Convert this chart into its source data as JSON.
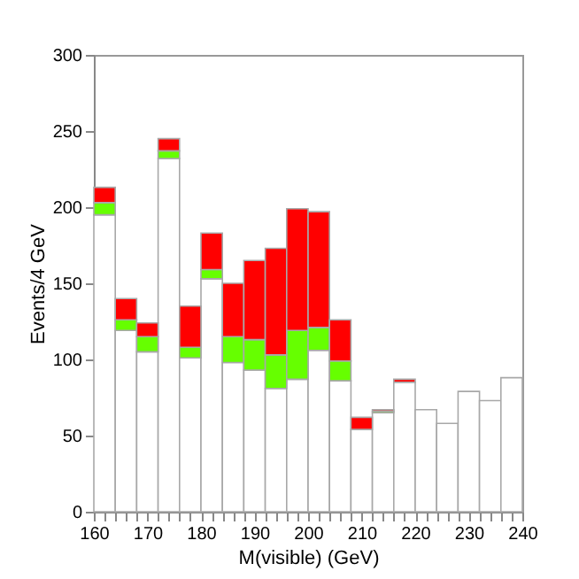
{
  "chart_data": {
    "type": "bar",
    "xlabel": "M(visible) (GeV)",
    "ylabel": "Events/4 GeV",
    "x": [
      162,
      166,
      170,
      174,
      178,
      182,
      186,
      190,
      194,
      198,
      202,
      206,
      210,
      214,
      218,
      222,
      226,
      230,
      234,
      238
    ],
    "stacked": true,
    "series": [
      {
        "color": "#ffffff",
        "values": [
          195,
          119,
          105,
          232,
          101,
          153,
          98,
          93,
          81,
          87,
          106,
          86,
          54,
          65,
          85,
          67,
          58,
          79,
          73,
          88
        ]
      },
      {
        "color": "#66ff00",
        "values": [
          8,
          7,
          10,
          5,
          7,
          6,
          17,
          20,
          22,
          32,
          15,
          13,
          0,
          1,
          0,
          0,
          0,
          0,
          0,
          0
        ]
      },
      {
        "color": "#ff0000",
        "values": [
          10,
          14,
          9,
          8,
          27,
          24,
          35,
          52,
          70,
          80,
          76,
          27,
          8,
          1,
          2,
          0,
          0,
          0,
          0,
          0
        ]
      }
    ],
    "xlim": [
      160,
      240
    ],
    "xticks": [
      160,
      {
        "value": 162,
        "label": null
      },
      {
        "value": 164,
        "label": null
      },
      {
        "value": 166,
        "label": null
      },
      {
        "value": 168,
        "label": null
      },
      170,
      {
        "value": 172,
        "label": null
      },
      {
        "value": 174,
        "label": null
      },
      {
        "value": 176,
        "label": null
      },
      {
        "value": 178,
        "label": null
      },
      180,
      {
        "value": 182,
        "label": null
      },
      {
        "value": 184,
        "label": null
      },
      {
        "value": 186,
        "label": null
      },
      {
        "value": 188,
        "label": null
      },
      190,
      {
        "value": 192,
        "label": null
      },
      {
        "value": 194,
        "label": null
      },
      {
        "value": 196,
        "label": null
      },
      {
        "value": 198,
        "label": null
      },
      200,
      {
        "value": 202,
        "label": null
      },
      {
        "value": 204,
        "label": null
      },
      {
        "value": 206,
        "label": null
      },
      {
        "value": 208,
        "label": null
      },
      210,
      {
        "value": 212,
        "label": null
      },
      {
        "value": 214,
        "label": null
      },
      {
        "value": 216,
        "label": null
      },
      {
        "value": 218,
        "label": null
      },
      220,
      {
        "value": 222,
        "label": null
      },
      {
        "value": 224,
        "label": null
      },
      {
        "value": 226,
        "label": null
      },
      {
        "value": 228,
        "label": null
      },
      230,
      {
        "value": 232,
        "label": null
      },
      {
        "value": 234,
        "label": null
      },
      {
        "value": 236,
        "label": null
      },
      {
        "value": 238,
        "label": null
      },
      240
    ],
    "ylim": [
      0,
      300
    ],
    "yticks": [
      0,
      50,
      100,
      150,
      200,
      250,
      300
    ]
  }
}
